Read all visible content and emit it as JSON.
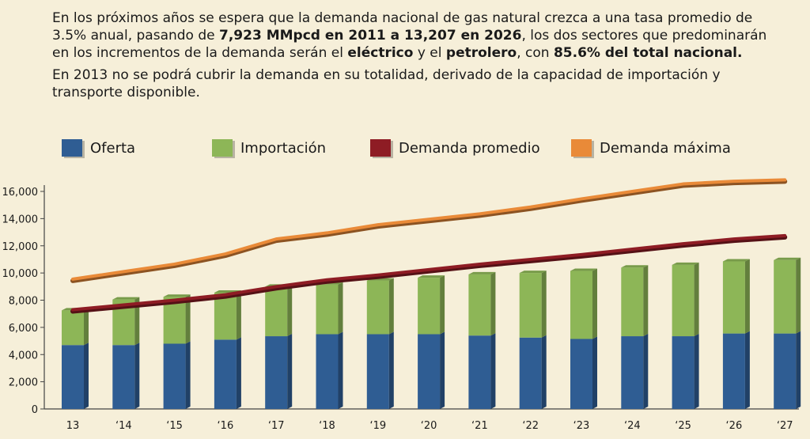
{
  "intro": {
    "p1_a": "En los próximos años se espera que la demanda nacional de gas natural crezca a una tasa promedio de 3.5% anual, pasando de ",
    "p1_b": "7,923 MMpcd en 2011 a 13,207 en 2026",
    "p1_c": ", los dos sectores que predominarán en los incrementos de la demanda serán el ",
    "p1_d": "eléctrico",
    "p1_e": " y el ",
    "p1_f": "petrolero",
    "p1_g": ", con ",
    "p1_h": "85.6% del total nacional.",
    "p2": "En 2013 no se podrá cubrir la demanda en su totalidad, derivado de la capacidad de importación y transporte disponible."
  },
  "colors": {
    "oferta": "#2f5d93",
    "importacion": "#8db657",
    "demanda_promedio": "#8e1c24",
    "demanda_maxima": "#e98a38",
    "background": "#f6efd9"
  },
  "chart_data": {
    "type": "bar",
    "categories": [
      "13",
      "‘14",
      "‘15",
      "‘16",
      "‘17",
      "‘18",
      "‘19",
      "‘20",
      "‘21",
      "‘22",
      "‘23",
      "‘24",
      "‘25",
      "‘26",
      "‘27"
    ],
    "stacked": true,
    "series": [
      {
        "name": "Oferta",
        "type": "bar",
        "values": [
          4700,
          4700,
          4800,
          5100,
          5350,
          5500,
          5500,
          5500,
          5400,
          5250,
          5150,
          5350,
          5350,
          5550,
          5550
        ]
      },
      {
        "name": "Importación",
        "type": "bar",
        "values": [
          2550,
          3350,
          3450,
          3450,
          3650,
          3650,
          3950,
          4150,
          4500,
          4750,
          5000,
          5050,
          5250,
          5300,
          5400
        ]
      },
      {
        "name": "Demanda promedio",
        "type": "line",
        "values": [
          7300,
          7650,
          8000,
          8400,
          9000,
          9500,
          9850,
          10250,
          10650,
          11000,
          11350,
          11750,
          12150,
          12500,
          12750
        ]
      },
      {
        "name": "Demanda máxima",
        "type": "line",
        "values": [
          9550,
          10100,
          10650,
          11400,
          12500,
          12950,
          13550,
          13950,
          14350,
          14850,
          15450,
          16000,
          16550,
          16750,
          16850
        ]
      }
    ],
    "yticks": [
      "0",
      "2,000",
      "4,000",
      "6,000",
      "8,000",
      "10,000",
      "12,000",
      "14,000",
      "16,000"
    ],
    "ylim": [
      0,
      16000
    ],
    "grid": false,
    "legend_position": "top"
  }
}
